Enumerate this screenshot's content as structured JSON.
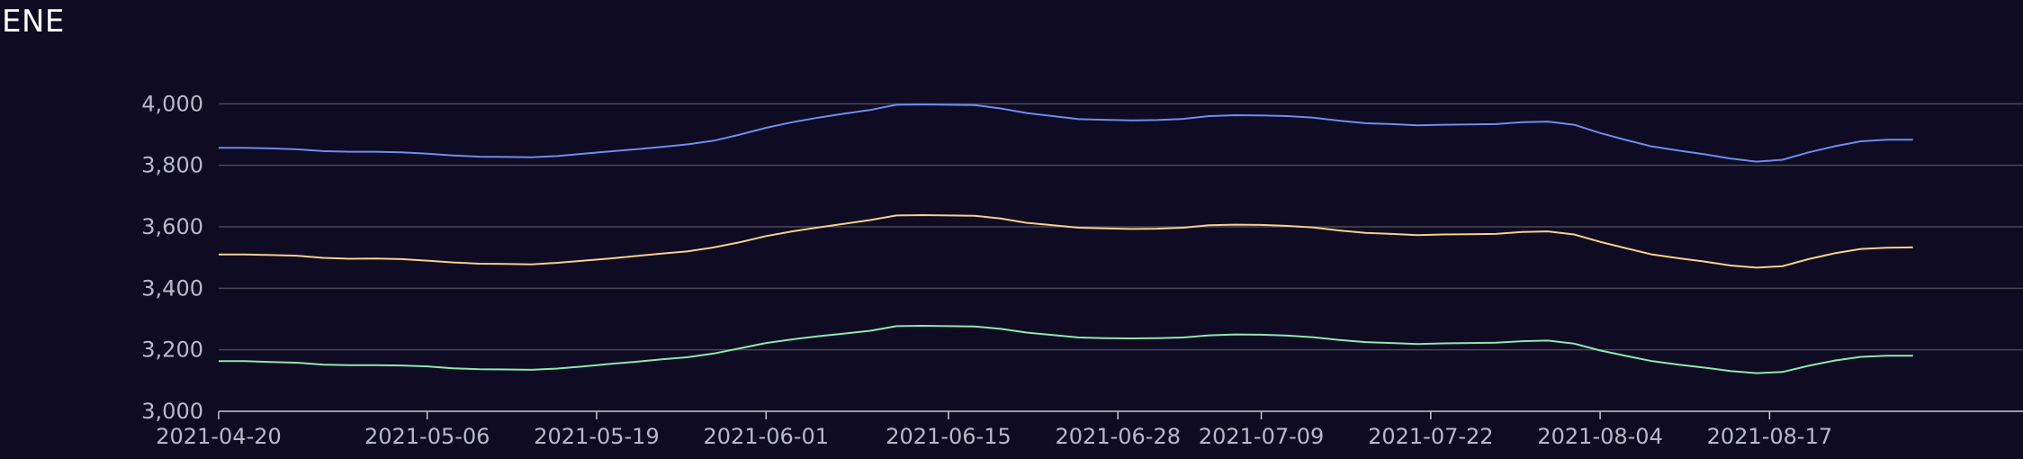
{
  "chart_data": {
    "type": "line",
    "title": "ENE",
    "xlabel": "",
    "ylabel": "",
    "ylim": [
      3000,
      4200
    ],
    "grid": true,
    "legend": "none",
    "yticks": [
      3000,
      3200,
      3400,
      3600,
      3800,
      4000
    ],
    "ytick_labels": [
      "3,000",
      "3,200",
      "3,400",
      "3,600",
      "3,800",
      "4,000"
    ],
    "xticks": [
      "2021-04-20",
      "2021-05-06",
      "2021-05-19",
      "2021-06-01",
      "2021-06-15",
      "2021-06-28",
      "2021-07-09",
      "2021-07-22",
      "2021-08-04",
      "2021-08-17"
    ],
    "x": [
      "2021-04-20",
      "2021-04-22",
      "2021-04-24",
      "2021-04-26",
      "2021-04-28",
      "2021-04-30",
      "2021-05-02",
      "2021-05-04",
      "2021-05-06",
      "2021-05-08",
      "2021-05-10",
      "2021-05-12",
      "2021-05-14",
      "2021-05-16",
      "2021-05-18",
      "2021-05-20",
      "2021-05-22",
      "2021-05-24",
      "2021-05-26",
      "2021-05-28",
      "2021-05-30",
      "2021-06-01",
      "2021-06-03",
      "2021-06-05",
      "2021-06-07",
      "2021-06-09",
      "2021-06-11",
      "2021-06-13",
      "2021-06-15",
      "2021-06-17",
      "2021-06-19",
      "2021-06-21",
      "2021-06-23",
      "2021-06-25",
      "2021-06-27",
      "2021-06-29",
      "2021-07-01",
      "2021-07-03",
      "2021-07-05",
      "2021-07-07",
      "2021-07-09",
      "2021-07-11",
      "2021-07-13",
      "2021-07-15",
      "2021-07-17",
      "2021-07-19",
      "2021-07-21",
      "2021-07-23",
      "2021-07-25",
      "2021-07-27",
      "2021-07-29",
      "2021-07-31",
      "2021-08-02",
      "2021-08-04",
      "2021-08-06",
      "2021-08-08",
      "2021-08-10",
      "2021-08-12",
      "2021-08-14",
      "2021-08-16",
      "2021-08-18",
      "2021-08-20",
      "2021-08-22",
      "2021-08-24",
      "2021-08-26",
      "2021-08-28"
    ],
    "series": [
      {
        "color": "#6f8cf0",
        "values": [
          3857,
          3857,
          3855,
          3852,
          3846,
          3844,
          3844,
          3842,
          3838,
          3832,
          3828,
          3827,
          3826,
          3830,
          3838,
          3845,
          3852,
          3860,
          3868,
          3880,
          3900,
          3922,
          3940,
          3955,
          3968,
          3980,
          3997,
          3998,
          3997,
          3996,
          3985,
          3970,
          3960,
          3950,
          3948,
          3946,
          3947,
          3951,
          3960,
          3963,
          3962,
          3960,
          3955,
          3945,
          3937,
          3934,
          3930,
          3932,
          3933,
          3934,
          3940,
          3942,
          3932,
          3905,
          3882,
          3861,
          3848,
          3836,
          3822,
          3812,
          3818,
          3842,
          3862,
          3878,
          3883,
          3883
        ]
      },
      {
        "color": "#f5d08a",
        "values": [
          3510,
          3510,
          3508,
          3506,
          3499,
          3496,
          3497,
          3495,
          3490,
          3484,
          3480,
          3479,
          3478,
          3483,
          3490,
          3497,
          3505,
          3513,
          3520,
          3533,
          3550,
          3570,
          3585,
          3598,
          3610,
          3622,
          3637,
          3638,
          3637,
          3636,
          3627,
          3613,
          3605,
          3597,
          3595,
          3593,
          3594,
          3597,
          3605,
          3607,
          3606,
          3603,
          3598,
          3588,
          3580,
          3577,
          3573,
          3575,
          3576,
          3577,
          3583,
          3585,
          3575,
          3551,
          3530,
          3510,
          3498,
          3487,
          3474,
          3467,
          3472,
          3495,
          3514,
          3528,
          3532,
          3533
        ]
      },
      {
        "color": "#8ee8b0",
        "values": [
          3163,
          3163,
          3160,
          3158,
          3152,
          3150,
          3150,
          3149,
          3146,
          3140,
          3137,
          3136,
          3135,
          3139,
          3146,
          3154,
          3161,
          3169,
          3176,
          3188,
          3205,
          3222,
          3234,
          3244,
          3253,
          3262,
          3277,
          3278,
          3277,
          3276,
          3268,
          3256,
          3248,
          3240,
          3238,
          3237,
          3238,
          3240,
          3247,
          3250,
          3249,
          3246,
          3241,
          3232,
          3225,
          3222,
          3219,
          3221,
          3222,
          3223,
          3228,
          3230,
          3220,
          3198,
          3180,
          3163,
          3152,
          3142,
          3131,
          3124,
          3128,
          3148,
          3165,
          3177,
          3181,
          3181
        ]
      }
    ]
  }
}
